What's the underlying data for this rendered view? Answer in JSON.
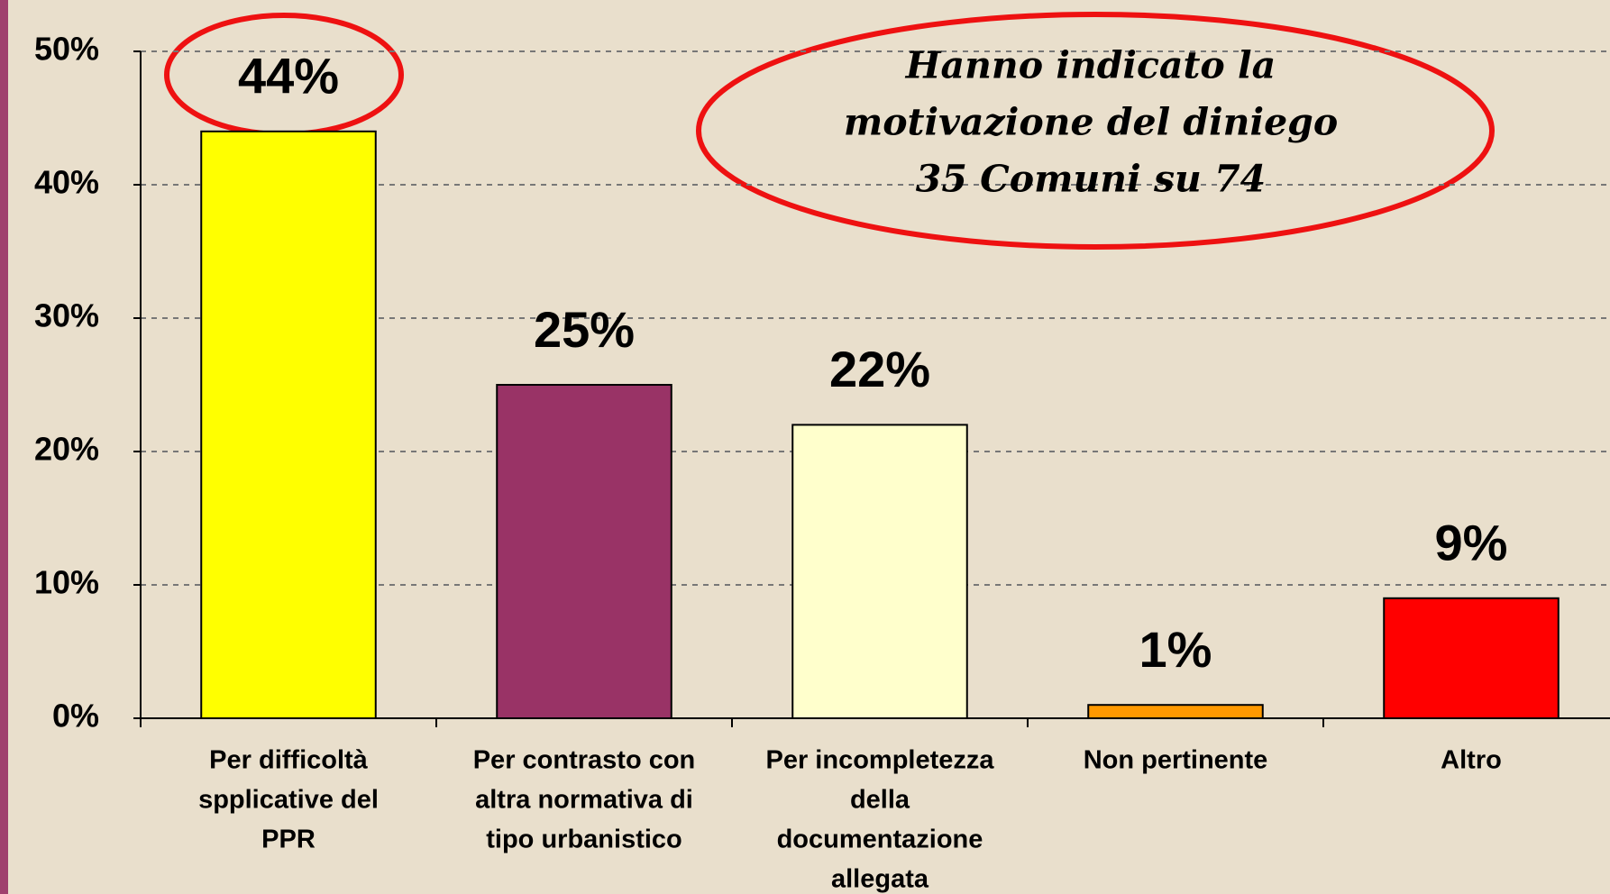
{
  "chart_data": {
    "type": "bar",
    "categories": [
      [
        "Per difficoltà",
        "spplicative del",
        "PPR"
      ],
      [
        "Per contrasto con",
        "altra normativa di",
        "tipo urbanistico"
      ],
      [
        "Per incompletezza",
        "della",
        "documentazione",
        "allegata"
      ],
      [
        "Non pertinente"
      ],
      [
        "Altro"
      ]
    ],
    "values": [
      44,
      25,
      22,
      1,
      9
    ],
    "value_labels": [
      "44%",
      "25%",
      "22%",
      "1%",
      "9%"
    ],
    "colors": [
      "#ffff00",
      "#993366",
      "#ffffcc",
      "#ff9900",
      "#ff0000"
    ],
    "ylim": [
      0,
      50
    ],
    "yticks": [
      {
        "value": 0,
        "label": "0%"
      },
      {
        "value": 10,
        "label": "10%"
      },
      {
        "value": 20,
        "label": "20%"
      },
      {
        "value": 30,
        "label": "30%"
      },
      {
        "value": 40,
        "label": "40%"
      },
      {
        "value": 50,
        "label": "50%"
      }
    ],
    "grid": true,
    "annotation": [
      "Hanno indicato la",
      "motivazione del diniego",
      "35 Comuni su 74"
    ]
  }
}
